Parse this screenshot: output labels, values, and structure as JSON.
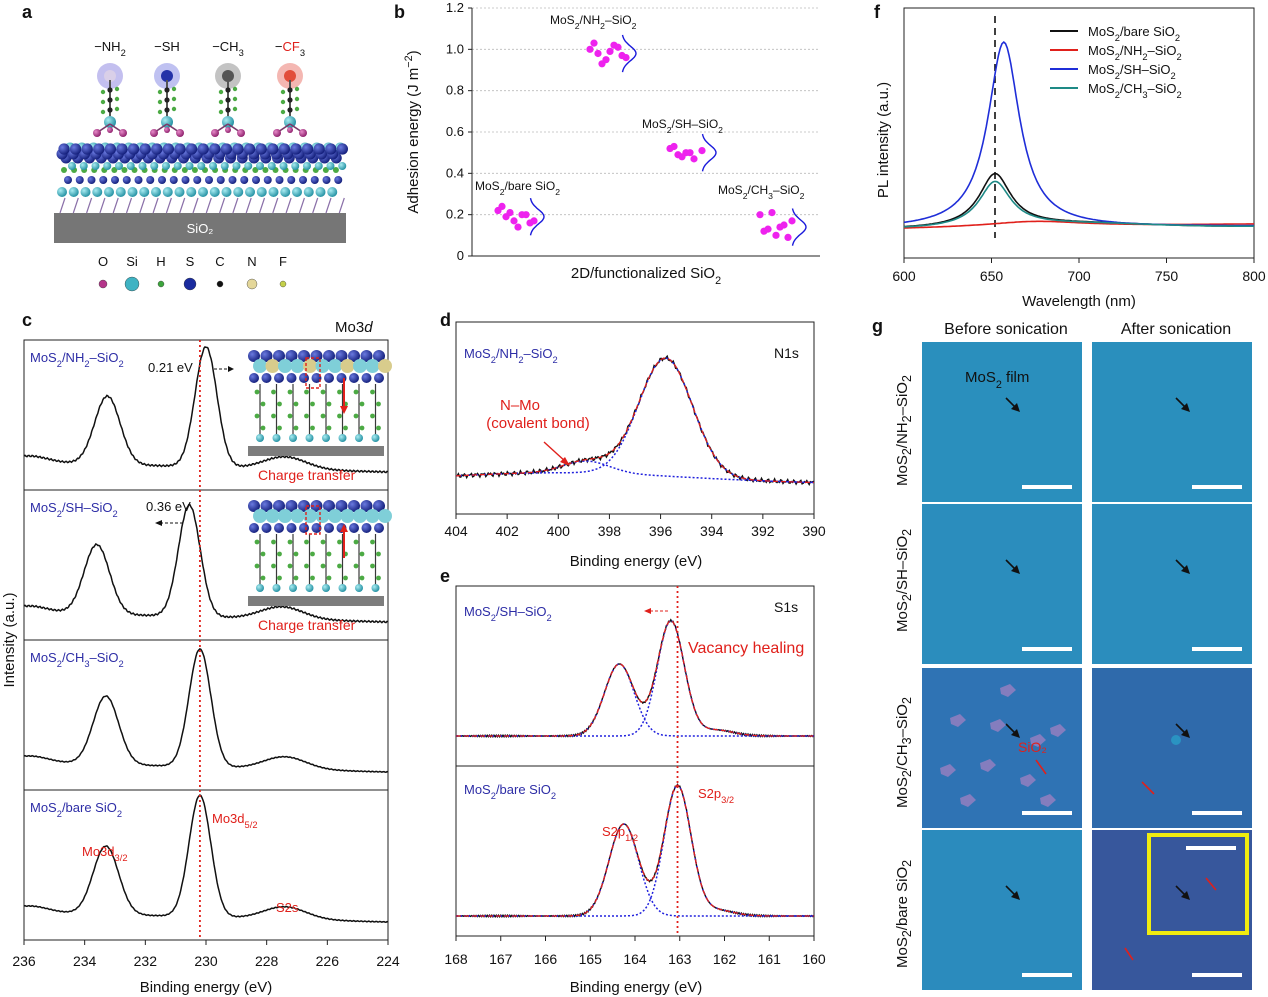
{
  "panel_letters": {
    "a": "a",
    "b": "b",
    "c": "c",
    "d": "d",
    "e": "e",
    "f": "f",
    "g": "g"
  },
  "panel_a": {
    "groups": [
      "−NH₂",
      "−SH",
      "−CH₃",
      "−CF₃"
    ],
    "substrate": "SiO₂",
    "legend": [
      {
        "label": "O",
        "color": "#b4358a"
      },
      {
        "label": "Si",
        "color": "#3fb3c3"
      },
      {
        "label": "H",
        "color": "#3ca53c"
      },
      {
        "label": "S",
        "color": "#1a2b9e"
      },
      {
        "label": "C",
        "color": "#111111"
      },
      {
        "label": "N",
        "color": "#e4d79a"
      },
      {
        "label": "F",
        "color": "#c4d04a"
      }
    ]
  },
  "chart_data": [
    {
      "id": "b",
      "type": "scatter",
      "xlabel": "2D/functionalized SiO₂",
      "ylabel": "Adhesion energy (J m⁻²)",
      "ylim": [
        0,
        1.2
      ],
      "yticks": [
        "0",
        "0.2",
        "0.4",
        "0.6",
        "0.8",
        "1.0",
        "1.2"
      ],
      "grid": true,
      "series": [
        {
          "name": "MoS₂/bare SiO₂",
          "values": [
            0.22,
            0.19,
            0.17,
            0.2,
            0.16,
            0.24,
            0.21,
            0.14,
            0.2,
            0.17
          ],
          "mean": 0.19
        },
        {
          "name": "MoS₂/NH₂–SiO₂",
          "values": [
            1.0,
            0.98,
            0.95,
            1.02,
            0.97,
            1.03,
            0.93,
            0.99,
            1.01,
            0.96
          ],
          "mean": 0.98
        },
        {
          "name": "MoS₂/SH–SiO₂",
          "values": [
            0.52,
            0.49,
            0.5,
            0.47,
            0.51,
            0.53,
            0.48,
            0.5
          ],
          "mean": 0.5
        },
        {
          "name": "MoS₂/CH₃–SiO₂",
          "values": [
            0.2,
            0.13,
            0.1,
            0.15,
            0.17,
            0.12,
            0.21,
            0.14,
            0.09
          ],
          "mean": 0.14
        }
      ]
    },
    {
      "id": "f",
      "type": "line",
      "xlabel": "Wavelength (nm)",
      "ylabel": "PL intensity (a.u.)",
      "xlim": [
        600,
        800
      ],
      "xticks": [
        "600",
        "650",
        "700",
        "750",
        "800"
      ],
      "marker_line_x": 652,
      "series": [
        {
          "name": "MoS₂/bare SiO₂",
          "color": "#111111",
          "peak": 652,
          "amplitude": 0.27
        },
        {
          "name": "MoS₂/NH₂–SiO₂",
          "color": "#e0201b",
          "peak": 675,
          "amplitude": 0.03
        },
        {
          "name": "MoS₂/SH–SiO₂",
          "color": "#1f2ed8",
          "peak": 657,
          "amplitude": 0.95
        },
        {
          "name": "MoS₂/CH₃–SiO₂",
          "color": "#1e8a86",
          "peak": 652,
          "amplitude": 0.23
        }
      ]
    },
    {
      "id": "c",
      "type": "line",
      "title": "Mo3d",
      "xlabel": "Binding energy (eV)",
      "ylabel": "Intensity (a.u.)",
      "xlim": [
        236,
        224
      ],
      "xticks": [
        "236",
        "234",
        "232",
        "230",
        "228",
        "226",
        "224"
      ],
      "reference_line_x": 230.2,
      "series": [
        {
          "name": "MoS₂/NH₂–SiO₂",
          "peaks": [
            233.25,
            230.0,
            227.4
          ],
          "shift_label": "0.21 eV"
        },
        {
          "name": "MoS₂/SH–SiO₂",
          "peaks": [
            233.6,
            230.55,
            227.5
          ],
          "shift_label": "0.36 eV"
        },
        {
          "name": "MoS₂/CH₃–SiO₂",
          "peaks": [
            233.3,
            230.2,
            227.4
          ]
        },
        {
          "name": "MoS₂/bare SiO₂",
          "peaks": [
            233.3,
            230.2,
            227.4
          ]
        }
      ],
      "annotations": [
        "Mo3d3/2",
        "Mo3d5/2",
        "S2s",
        "Charge transfer"
      ]
    },
    {
      "id": "d",
      "type": "line",
      "title": "N1s",
      "sample": "MoS₂/NH₂–SiO₂",
      "xlabel": "Binding energy (eV)",
      "xlim": [
        404,
        390
      ],
      "xticks": [
        "404",
        "402",
        "400",
        "398",
        "396",
        "394",
        "392",
        "390"
      ],
      "components": [
        {
          "center": 395.8,
          "label": ""
        },
        {
          "center": 398.9,
          "label": "N–Mo (covalent bond)"
        }
      ]
    },
    {
      "id": "e",
      "type": "line",
      "title": "S1s",
      "xlabel": "Binding energy (eV)",
      "xlim": [
        168,
        160
      ],
      "xticks": [
        "168",
        "167",
        "166",
        "165",
        "164",
        "163",
        "162",
        "161",
        "160"
      ],
      "reference_line_x": 163.05,
      "series": [
        {
          "name": "MoS₂/SH–SiO₂",
          "peaks": [
            164.35,
            163.2
          ],
          "note": "Vacancy healing"
        },
        {
          "name": "MoS₂/bare SiO₂",
          "peaks": [
            164.25,
            163.05
          ],
          "labels": [
            "S2p1/2",
            "S2p3/2"
          ]
        }
      ]
    }
  ],
  "panel_b_text": {
    "ylabel_main": "Adhesion energy (J m",
    "ylabel_exp": "−2",
    "ylabel_end": ")",
    "xlabel": "2D/functionalized SiO₂",
    "labels": [
      "MoS₂/bare SiO₂",
      "MoS₂/NH₂–SiO₂",
      "MoS₂/SH–SiO₂",
      "MoS₂/CH₃–SiO₂"
    ]
  },
  "panel_c_text": {
    "title_main": "Mo3",
    "title_it": "d",
    "ylabel": "Intensity (a.u.)",
    "xlabel": "Binding energy (eV)",
    "sub_labels": [
      "MoS₂/NH₂–SiO₂",
      "MoS₂/SH–SiO₂",
      "MoS₂/CH₃–SiO₂",
      "MoS₂/bare SiO₂"
    ],
    "shift1": "0.21 eV",
    "shift2": "0.36 eV",
    "charge": "Charge transfer",
    "mo32": "Mo3d",
    "mo32_sub": "3/2",
    "mo52": "Mo3d",
    "mo52_sub": "5/2",
    "s2s": "S2s"
  },
  "panel_d_text": {
    "title": "N1s",
    "sample": "MoS₂/NH₂–SiO₂",
    "ann1": "N–Mo",
    "ann2": "(covalent bond)",
    "xlabel": "Binding energy (eV)"
  },
  "panel_e_text": {
    "title": "S1s",
    "sample1": "MoS₂/SH–SiO₂",
    "sample2": "MoS₂/bare SiO₂",
    "note": "Vacancy healing",
    "p12": "S2p",
    "p12_sub": "1/2",
    "p32": "S2p",
    "p32_sub": "3/2",
    "xlabel": "Binding energy (eV)"
  },
  "panel_f_text": {
    "xlabel": "Wavelength (nm)",
    "ylabel": "PL intensity (a.u.)"
  },
  "panel_g": {
    "col_headers": [
      "Before sonication",
      "After sonication"
    ],
    "row_labels": [
      "MoS₂/NH₂–SiO₂",
      "MoS₂/SH–SiO₂",
      "MoS₂/CH₃–SiO₂",
      "MoS₂/bare SiO₂"
    ],
    "film_label": "MoS₂ film",
    "sio2_label": "SiO₂",
    "colors": {
      "nh2": "#2a8fbd",
      "sh": "#2b8dbd",
      "ch3_before": "#2f73b4",
      "ch3_after": "#2f6aab",
      "bare_before": "#2b8bbd",
      "bare_after": "#37579c",
      "inset_border": "#f0ec10"
    }
  }
}
